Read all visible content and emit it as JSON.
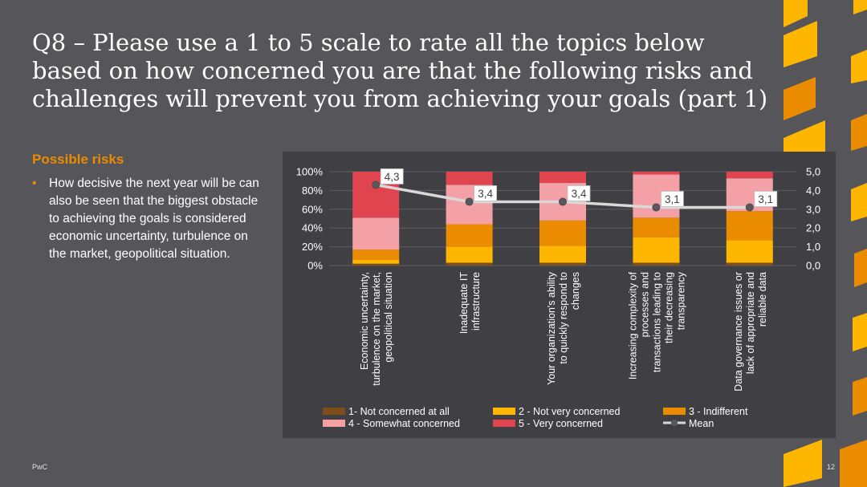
{
  "slide": {
    "title": "Q8 – Please use a 1 to 5 scale to rate all the topics below based on how concerned you are that the following risks and challenges will prevent you from achieving your goals (part 1)",
    "subheading": "Possible risks",
    "bullet_marker": "•",
    "bullet": "How decisive the next year will be can also be seen that the biggest obstacle to achieving the goals is considered economic uncertainty, turbulence on the market, geopolitical situation.",
    "footer_left": "PwC",
    "page_number": "12"
  },
  "colors": {
    "background": "#56565a",
    "chart_panel": "#404044",
    "accent": "#eb8c00",
    "deco_light": "#ffb600",
    "deco_dark": "#eb8c00"
  },
  "chart_data": {
    "type": "bar",
    "stacked": true,
    "categories": [
      [
        "Economic uncertainty,",
        "turbulence on the market,",
        "geopolitical situation"
      ],
      [
        "Inadequate IT",
        "infrastructure"
      ],
      [
        "Your organization's ability",
        "to quickly respond to",
        "changes"
      ],
      [
        "Increasing complexity of",
        "processes and",
        "transactions leading to",
        "their decreasing",
        "transparency"
      ],
      [
        "Data governance issues or",
        "lack of appropriate and",
        "reliable data"
      ]
    ],
    "series": [
      {
        "name": "1- Not concerned at all",
        "color": "#7d4e1c",
        "values": [
          2,
          3,
          3,
          3,
          3
        ]
      },
      {
        "name": "2 - Not very concerned",
        "color": "#ffb600",
        "values": [
          4,
          17,
          18,
          27,
          24
        ]
      },
      {
        "name": "3 - Indifferent",
        "color": "#eb8c00",
        "values": [
          11,
          24,
          27,
          21,
          31
        ]
      },
      {
        "name": "4 - Somewhat concerned",
        "color": "#f3a0a6",
        "values": [
          34,
          42,
          40,
          46,
          35
        ]
      },
      {
        "name": "5 - Very concerned",
        "color": "#e0444f",
        "values": [
          49,
          14,
          12,
          3,
          7
        ]
      }
    ],
    "mean": {
      "name": "Mean",
      "values": [
        4.3,
        3.4,
        3.4,
        3.1,
        3.1
      ],
      "labels": [
        "4,3",
        "3,4",
        "3,4",
        "3,1",
        "3,1"
      ],
      "color": "#d9d9d9"
    },
    "y_left": {
      "ylim": [
        0,
        100
      ],
      "ticks": [
        "0%",
        "20%",
        "40%",
        "60%",
        "80%",
        "100%"
      ]
    },
    "y_right": {
      "ylim": [
        0,
        5
      ],
      "ticks": [
        "0,0",
        "1,0",
        "2,0",
        "3,0",
        "4,0",
        "5,0"
      ]
    },
    "legend_position": "bottom",
    "grid": true
  }
}
